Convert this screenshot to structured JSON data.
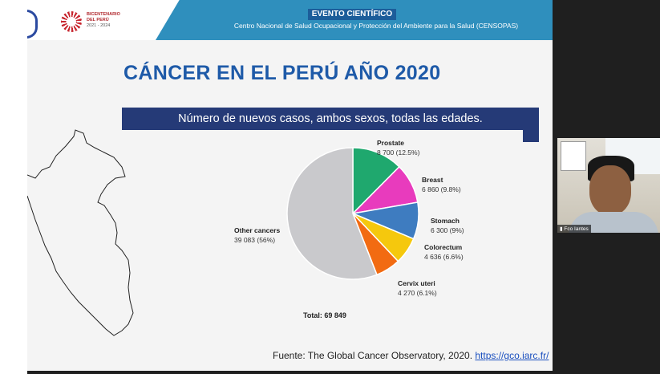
{
  "header": {
    "event_tag": "EVENTO CIENTÍFICO",
    "center_name": "Centro Nacional de Salud Ocupacional y Protección del Ambiente para la Salud (CENSOPAS)",
    "bicentenary_line1": "BICENTENARIO",
    "bicentenary_line2": "DEL PERÚ",
    "bicentenary_years": "2021 - 2024"
  },
  "slide": {
    "title": "CÁNCER EN EL PERÚ AÑO 2020",
    "subtitle": "Número de nuevos casos, ambos sexos, todas las edades.",
    "source_prefix": "Fuente: The Global Cancer Observatory, 2020.",
    "source_link": "https://gco.iarc.fr/"
  },
  "chart_data": {
    "type": "pie",
    "total_label": "Total: 69 849",
    "slices": [
      {
        "name": "Prostate",
        "value": 8700,
        "label": "8 700 (12.5%)",
        "percent": 12.5,
        "color": "#1fa86e"
      },
      {
        "name": "Breast",
        "value": 6860,
        "label": "6 860 (9.8%)",
        "percent": 9.8,
        "color": "#e83bbd"
      },
      {
        "name": "Stomach",
        "value": 6300,
        "label": "6 300 (9%)",
        "percent": 9.0,
        "color": "#3e7cc0"
      },
      {
        "name": "Colorectum",
        "value": 4636,
        "label": "4 636 (6.6%)",
        "percent": 6.6,
        "color": "#f5c80d"
      },
      {
        "name": "Cervix uteri",
        "value": 4270,
        "label": "4 270 (6.1%)",
        "percent": 6.1,
        "color": "#f26b12"
      },
      {
        "name": "Other cancers",
        "value": 39083,
        "label": "39 083 (56%)",
        "percent": 56.0,
        "color": "#c9c9cc"
      }
    ]
  },
  "video": {
    "participant_name": "Fco Iantes"
  }
}
